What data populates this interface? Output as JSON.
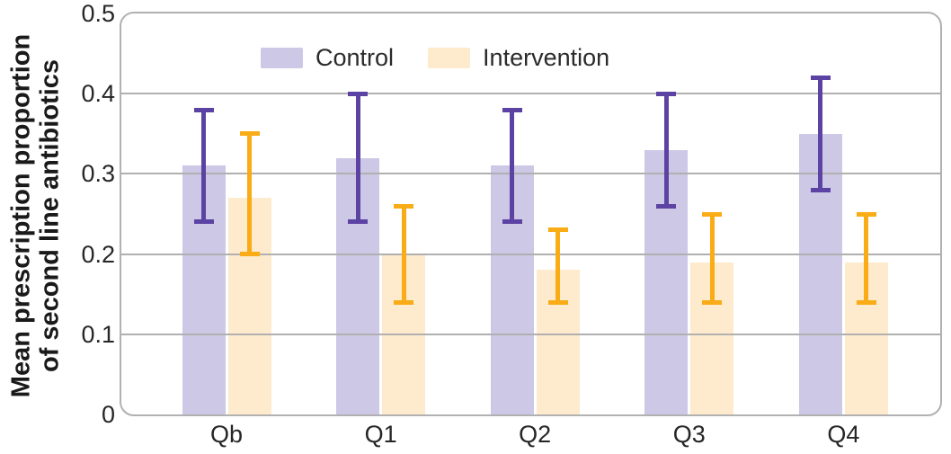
{
  "chart_data": {
    "type": "bar",
    "title": "",
    "xlabel": "",
    "ylabel": "Mean prescription proportion of second line antibiotics",
    "ylabel_lines": [
      "Mean prescription proportion",
      "of second line antibiotics"
    ],
    "categories": [
      "Qb",
      "Q1",
      "Q2",
      "Q3",
      "Q4"
    ],
    "series": [
      {
        "name": "Control",
        "color": "#cdc8e6",
        "error_color": "#5c43a3",
        "values": [
          0.31,
          0.32,
          0.31,
          0.33,
          0.35
        ],
        "error_low": [
          0.24,
          0.24,
          0.24,
          0.26,
          0.28
        ],
        "error_high": [
          0.38,
          0.4,
          0.38,
          0.4,
          0.42
        ]
      },
      {
        "name": "Intervention",
        "color": "#feeacc",
        "error_color": "#f9ac15",
        "values": [
          0.27,
          0.2,
          0.18,
          0.19,
          0.19
        ],
        "error_low": [
          0.2,
          0.14,
          0.14,
          0.14,
          0.14
        ],
        "error_high": [
          0.35,
          0.26,
          0.23,
          0.25,
          0.25
        ]
      }
    ],
    "ylim": [
      0,
      0.5
    ],
    "yticks": [
      "0",
      "0.1",
      "0.2",
      "0.3",
      "0.4",
      "0.5"
    ],
    "grid": "horizontal",
    "legend_position": "top-left",
    "grid_color": "#b0b0b0",
    "frame_color": "#b1b1b1",
    "text_color": "#262626"
  }
}
